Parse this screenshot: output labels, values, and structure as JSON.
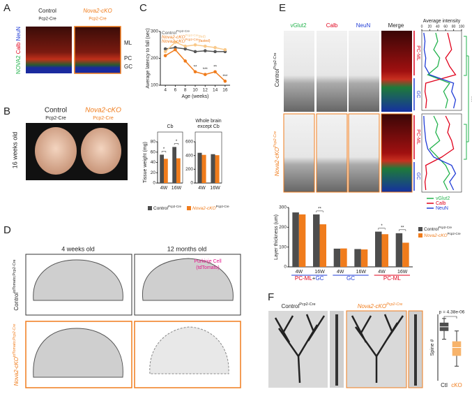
{
  "panels": {
    "A": {
      "label": "A",
      "col1": "Control",
      "col1_sub": "Pcp2-Cre",
      "col2": "Nova2-cKO",
      "col2_sub": "Pcp2-Cre",
      "stain": [
        "NOVA2",
        "Calb",
        "NeuN"
      ],
      "layers": [
        "ML",
        "PC",
        "GC"
      ]
    },
    "B": {
      "label": "B",
      "col1": "Control",
      "col1_sub": "Pcp2-Cre",
      "col2": "Nova2-cKO",
      "col2_sub": "Pcp2-Cre",
      "side": "16 weeks old"
    },
    "C": {
      "label": "C"
    },
    "D": {
      "label": "D",
      "col1": "4 weeks old",
      "col2": "12 months old",
      "note": [
        "Purkinje Cell",
        "(tdTomato)"
      ],
      "row1": "Control",
      "row1_sup": "tdTomato;Pcp2-Cre",
      "row2": "Nova2-cKO",
      "row2_sup": "tdTomato;Pcp2-Cre"
    },
    "E": {
      "label": "E",
      "columns": [
        "vGlut2",
        "Calb",
        "NeuN",
        "Merge"
      ],
      "row1": "Control",
      "row1_sup": "Pcp2-Cre",
      "row2": "Nova2-cKO",
      "row2_sup": "Pcp2-Cre",
      "layers": [
        "PC-ML",
        "GC"
      ],
      "significance": "***"
    },
    "F": {
      "label": "F",
      "col1": "Control",
      "col1_sup": "Pcp2-Cre",
      "col2": "Nova2-cKO",
      "col2_sup": "Pcp2-Cre"
    }
  },
  "chart_data": [
    {
      "type": "line",
      "ylabel": "Average latency to fall (sec)",
      "xlabel": "Age (weeks)",
      "xlim": [
        3,
        17
      ],
      "xticks": [
        4,
        6,
        8,
        10,
        12,
        14,
        16
      ],
      "ylim": [
        100,
        300
      ],
      "yticks": [
        100,
        200,
        300
      ],
      "x": [
        4,
        6,
        8,
        10,
        12,
        14,
        16
      ],
      "series": [
        {
          "name": "Control",
          "name_sup": "Pcp2-Cre",
          "color": "#555555",
          "values": [
            235,
            240,
            235,
            225,
            228,
            225,
            225
          ]
        },
        {
          "name": "Nova2-cKO",
          "name_sup": "Pcp2-Cre",
          "name_note": "(fed)",
          "color": "#f9c98a",
          "values": [
            225,
            260,
            245,
            250,
            245,
            240,
            232
          ]
        },
        {
          "name": "Nova2-cKO",
          "name_sup": "Pcp2-Cre",
          "name_note": "(fasted)",
          "color": "#f07c1c",
          "values": [
            210,
            232,
            190,
            150,
            140,
            150,
            115
          ]
        }
      ],
      "significance": [
        null,
        null,
        null,
        "**",
        "***",
        "**",
        "***"
      ]
    },
    {
      "type": "bar",
      "title": [
        "Cb"
      ],
      "ylabel": "Tissue weight (mg)",
      "ylim": [
        0,
        80
      ],
      "yticks": [
        0,
        20,
        40,
        60,
        80
      ],
      "categories": [
        "4W",
        "16W"
      ],
      "series": [
        {
          "name": "Control",
          "name_sup": "Pcp2-Cre",
          "color": "#4d4d4d",
          "values": [
            55,
            70
          ]
        },
        {
          "name": "Nova2-cKO",
          "name_sup": "Pcp2-Cre",
          "color": "#f07c1c",
          "values": [
            47,
            48
          ]
        }
      ],
      "significance": [
        "*",
        "*"
      ]
    },
    {
      "type": "bar",
      "title": [
        "Whole brain",
        "except Cb"
      ],
      "ylim": [
        0,
        600
      ],
      "yticks": [
        0,
        200,
        400,
        600
      ],
      "categories": [
        "4W",
        "16W"
      ],
      "series": [
        {
          "color": "#4d4d4d",
          "values": [
            440,
            420
          ]
        },
        {
          "color": "#f07c1c",
          "values": [
            410,
            405
          ]
        }
      ]
    },
    {
      "type": "bar",
      "ylabel": "Layer thickness (um)",
      "ylim": [
        0,
        300
      ],
      "yticks": [
        0,
        100,
        200,
        300
      ],
      "categories": [
        "4W",
        "16W",
        "4W",
        "16W",
        "4W",
        "16W"
      ],
      "series": [
        {
          "name": "Control",
          "name_sup": "Pcp2-Cre",
          "color": "#4d4d4d",
          "values": [
            275,
            265,
            92,
            90,
            178,
            170
          ]
        },
        {
          "name": "Nova2-cKO",
          "name_sup": "Pcp2-Cre",
          "color": "#f07c1c",
          "values": [
            265,
            215,
            93,
            88,
            165,
            122
          ]
        }
      ],
      "significance": [
        null,
        "**",
        null,
        null,
        "*",
        "**"
      ],
      "groups": [
        {
          "parts": [
            "PC-ML",
            "+",
            "GC"
          ],
          "colors": [
            "#e0001b",
            "#222222",
            "#1f3bd6"
          ]
        },
        {
          "parts": [
            "GC"
          ],
          "colors": [
            "#1f3bd6"
          ]
        },
        {
          "parts": [
            "PC-ML"
          ],
          "colors": [
            "#e0001b"
          ]
        }
      ]
    },
    {
      "type": "profile",
      "title": "Average intensity",
      "xlim": [
        0,
        100
      ],
      "xticks": [
        0,
        20,
        40,
        60,
        80,
        100
      ],
      "series": [
        {
          "color": "#22b24c",
          "values": [
            35,
            40,
            30,
            45,
            40,
            15,
            70,
            55,
            65,
            60
          ]
        },
        {
          "color": "#e0001b",
          "values": [
            65,
            70,
            75,
            60,
            70,
            85,
            10,
            8,
            12,
            10
          ]
        },
        {
          "color": "#1f3bd6",
          "values": [
            5,
            8,
            6,
            10,
            8,
            20,
            80,
            75,
            85,
            80
          ]
        }
      ]
    },
    {
      "type": "profile",
      "xlim": [
        0,
        100
      ],
      "series": [
        {
          "name": "vGlut2",
          "color": "#22b24c",
          "values": [
            30,
            40,
            35,
            45,
            20,
            40,
            60,
            70,
            55,
            65
          ]
        },
        {
          "name": "Calb",
          "color": "#e0001b",
          "values": [
            60,
            70,
            65,
            75,
            80,
            50,
            10,
            12,
            8,
            10
          ]
        },
        {
          "name": "NeuN",
          "color": "#1f3bd6",
          "values": [
            5,
            6,
            8,
            10,
            15,
            30,
            75,
            85,
            70,
            80
          ]
        }
      ]
    },
    {
      "type": "box",
      "ylabel": "Spine #",
      "annotation": "p = 4.38e-06",
      "ylim": [
        0,
        16
      ],
      "categories": [
        "Ctl",
        "cKO"
      ],
      "boxes": [
        {
          "min": 10,
          "q1": 12,
          "median": 13,
          "q3": 14,
          "max": 15,
          "color": "#4d4d4d"
        },
        {
          "min": 3.5,
          "q1": 6,
          "median": 8,
          "q3": 9.5,
          "max": 12,
          "color": "#f7b36a"
        }
      ]
    }
  ]
}
